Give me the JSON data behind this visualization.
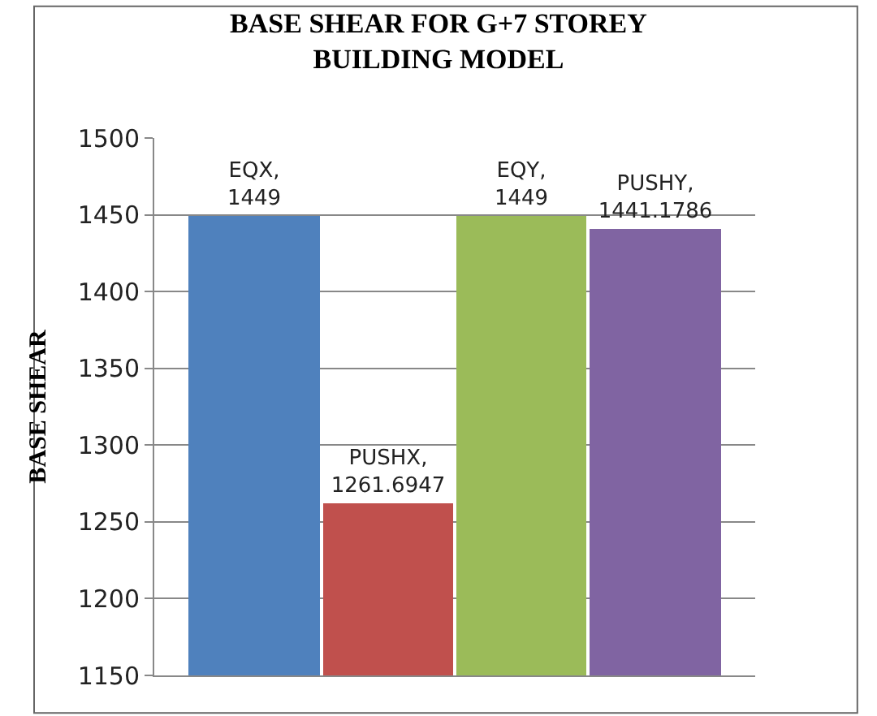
{
  "chart_data": {
    "type": "bar",
    "title": "BASE SHEAR FOR G+7 STOREY BUILDING MODEL",
    "ylabel": "BASE SHEAR",
    "categories": [
      null,
      null,
      null,
      null
    ],
    "values": [
      1449,
      1261.6947,
      1449,
      1441.1786
    ],
    "colors": [
      "#4f81bd",
      "#c0504d",
      "#9bbb59",
      "#8064a2"
    ],
    "value_labels": [
      "EQX, 1449",
      "PUSHX, 1261.6947",
      "EQY, 1449",
      "PUSHY, 1441.1786"
    ],
    "ylim": [
      1150,
      1500
    ],
    "yticks": [
      1150,
      1200,
      1250,
      1300,
      1350,
      1400,
      1450,
      1500
    ],
    "grid": "y",
    "tick_labels": "y"
  }
}
